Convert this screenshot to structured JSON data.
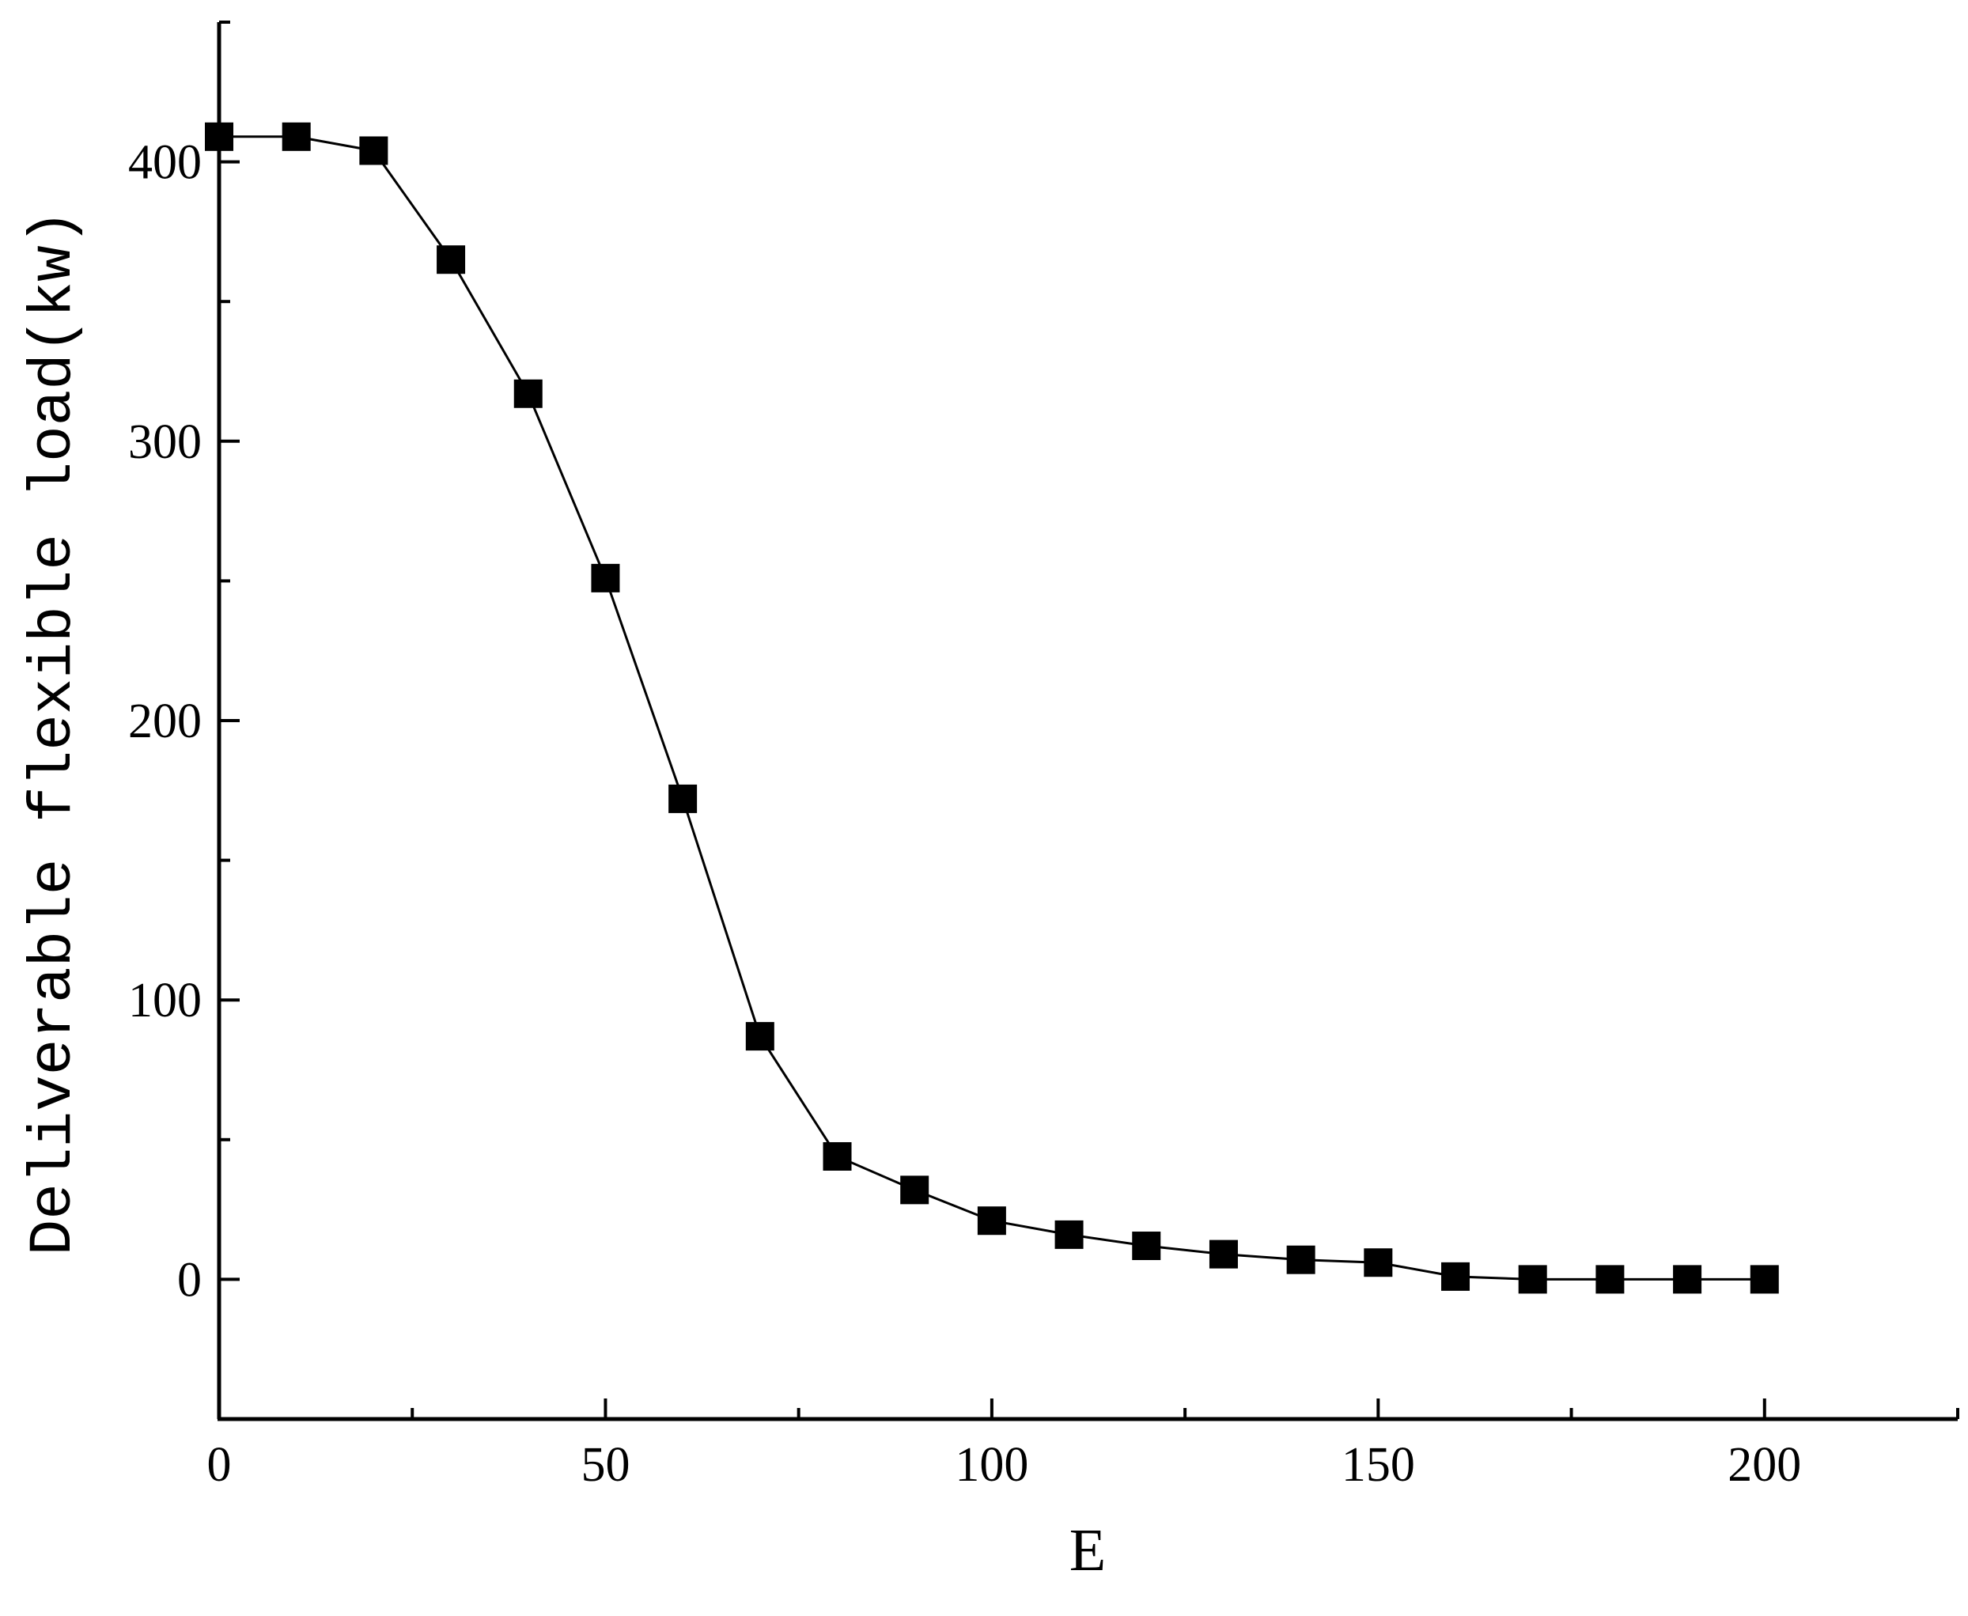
{
  "chart_data": {
    "type": "line",
    "title": "",
    "xlabel": "E",
    "ylabel": "Deliverable flexible load(kw)",
    "xlim": [
      0,
      225
    ],
    "ylim": [
      -50,
      450
    ],
    "x_ticks": [
      0,
      50,
      100,
      150,
      200
    ],
    "x_tick_labels": [
      "0",
      "50",
      "100",
      "150",
      "200"
    ],
    "x_minor_ticks": [
      25,
      75,
      125,
      175,
      225
    ],
    "y_ticks": [
      0,
      100,
      200,
      300,
      400
    ],
    "y_tick_labels": [
      "0",
      "100",
      "200",
      "300",
      "400"
    ],
    "y_minor_ticks": [
      -50,
      50,
      150,
      250,
      350,
      450
    ],
    "grid": false,
    "legend": "none",
    "series": [
      {
        "marker": "square",
        "color": "#000000",
        "x": [
          0,
          10,
          20,
          30,
          40,
          50,
          60,
          70,
          80,
          90,
          100,
          110,
          120,
          130,
          140,
          150,
          160,
          170,
          180,
          190,
          200
        ],
        "y": [
          409,
          409,
          404,
          365,
          317,
          251,
          172,
          87,
          44,
          32,
          21,
          16,
          12,
          9,
          7,
          6,
          1,
          0,
          0,
          0,
          0
        ]
      }
    ]
  }
}
